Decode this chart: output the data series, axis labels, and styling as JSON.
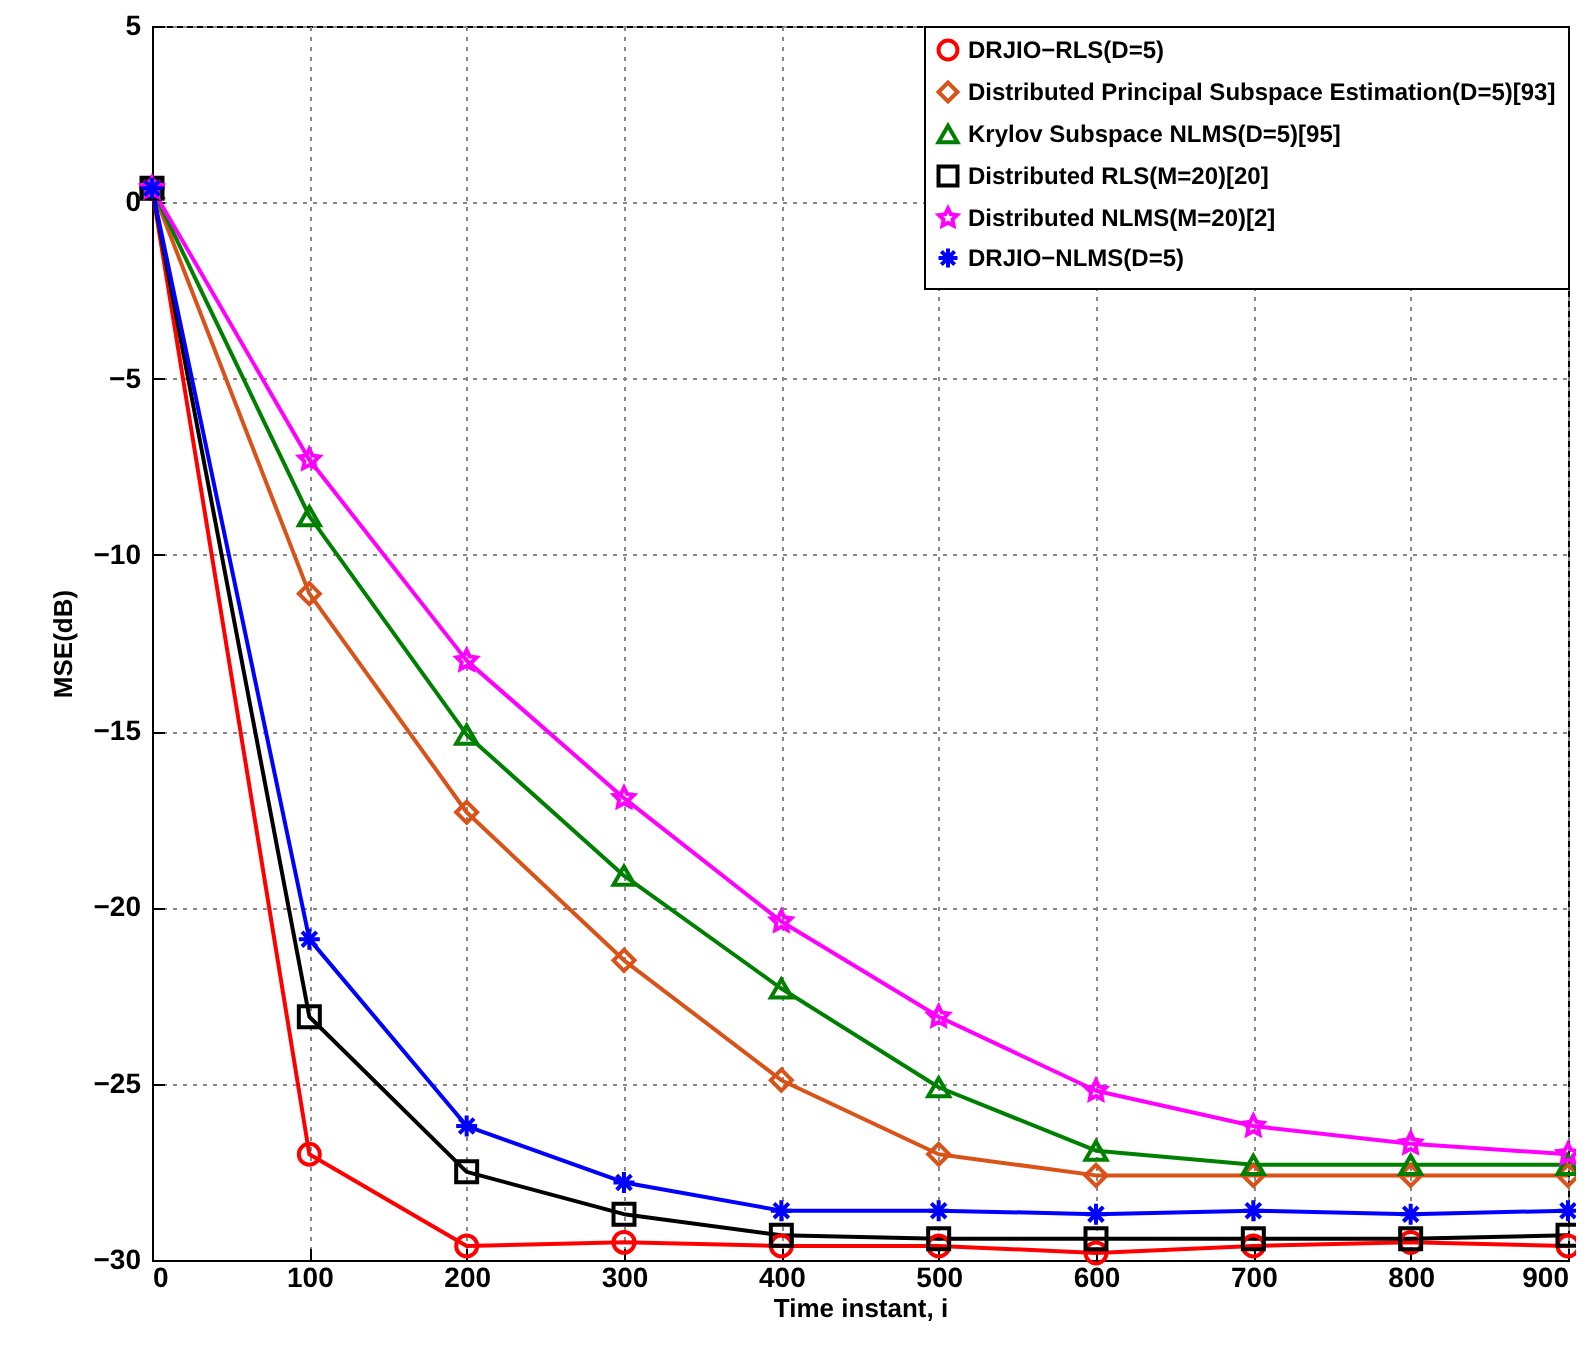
{
  "chart_data": {
    "type": "line",
    "xlabel": "Time instant, i",
    "ylabel": "MSE(dB)",
    "x": [
      0,
      100,
      200,
      300,
      400,
      500,
      600,
      700,
      800,
      900
    ],
    "xlim": [
      0,
      900
    ],
    "xticks": [
      0,
      100,
      200,
      300,
      400,
      500,
      600,
      700,
      800,
      900
    ],
    "ylim": [
      -30,
      5
    ],
    "yticks": [
      -30,
      -25,
      -20,
      -15,
      -10,
      -5,
      0,
      5
    ],
    "grid": true,
    "legend": "top right",
    "line_style": "solid",
    "series": [
      {
        "name": "DRJIO−RLS(D=5)",
        "color": "#ff0000",
        "marker": "circle",
        "values": [
          0.4,
          -27.0,
          -29.6,
          -29.5,
          -29.6,
          -29.6,
          -29.8,
          -29.6,
          -29.5,
          -29.6
        ]
      },
      {
        "name": "Distributed Principal Subspace Estimation(D=5)[93]",
        "color": "#d95319",
        "marker": "diamond",
        "values": [
          0.4,
          -11.1,
          -17.3,
          -21.5,
          -24.9,
          -27.0,
          -27.6,
          -27.6,
          -27.6,
          -27.6
        ]
      },
      {
        "name": "Krylov Subspace NLMS(D=5)[95]",
        "color": "#008000",
        "marker": "triangle",
        "values": [
          0.4,
          -8.9,
          -15.1,
          -19.1,
          -22.3,
          -25.1,
          -26.9,
          -27.3,
          -27.3,
          -27.3
        ]
      },
      {
        "name": "Distributed RLS(M=20)[20]",
        "color": "#000000",
        "marker": "square",
        "values": [
          0.4,
          -23.1,
          -27.5,
          -28.7,
          -29.3,
          -29.4,
          -29.4,
          -29.4,
          -29.4,
          -29.3
        ]
      },
      {
        "name": "Distributed NLMS(M=20)[2]",
        "color": "#ff00ff",
        "marker": "star",
        "values": [
          0.4,
          -7.3,
          -13.0,
          -16.9,
          -20.4,
          -23.1,
          -25.2,
          -26.2,
          -26.7,
          -27.0
        ]
      },
      {
        "name": "DRJIO−NLMS(D=5)",
        "color": "#0000ff",
        "marker": "cross",
        "values": [
          0.4,
          -20.9,
          -26.2,
          -27.8,
          -28.6,
          -28.6,
          -28.7,
          -28.6,
          -28.7,
          -28.6
        ]
      }
    ]
  }
}
